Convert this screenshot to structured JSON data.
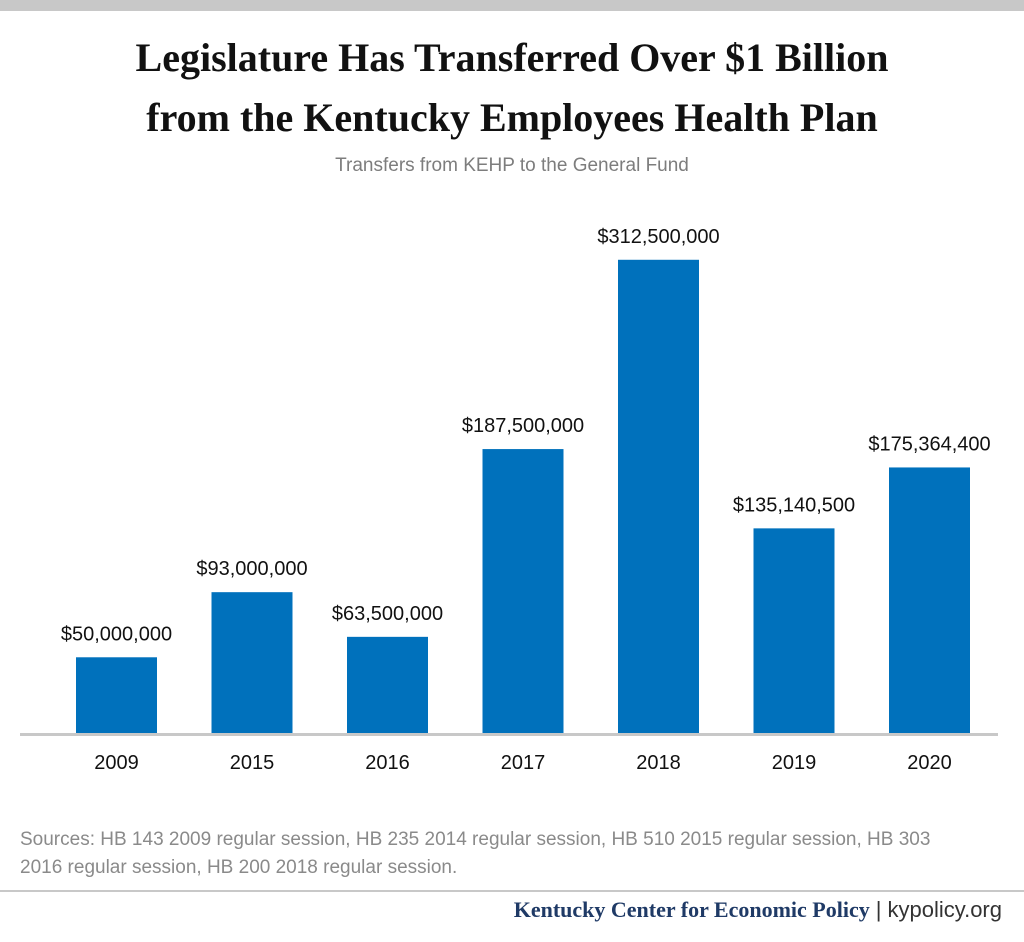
{
  "title_lines": [
    "Legislature Has Transferred Over $1 Billion",
    "from the Kentucky Employees Health Plan"
  ],
  "subtitle": "Transfers from KEHP to the General Fund",
  "chart_data": {
    "type": "bar",
    "title": "Transfers from KEHP to the General Fund",
    "xlabel": "",
    "ylabel": "",
    "categories": [
      "2009",
      "2015",
      "2016",
      "2017",
      "2018",
      "2019",
      "2020"
    ],
    "values": [
      50000000,
      93000000,
      63500000,
      187500000,
      312500000,
      135140500,
      175364400
    ],
    "value_labels": [
      "$50,000,000",
      "$93,000,000",
      "$63,500,000",
      "$187,500,000",
      "$312,500,000",
      "$135,140,500",
      "$175,364,400"
    ],
    "ylim": [
      0,
      350000000
    ],
    "grid": false,
    "bar_color": "#0071bc"
  },
  "sources_lines": [
    "Sources: HB 143 2009 regular session, HB 235 2014 regular session, HB 510 2015 regular session, HB 303",
    "2016 regular session, HB 200 2018 regular session."
  ],
  "footer": {
    "org": "Kentucky Center for Economic Policy",
    "separator": "|",
    "site": "kypolicy.org"
  },
  "colors": {
    "bar": "#0071bc",
    "axis": "#c8c8c8",
    "org_text": "#1f3a66"
  }
}
